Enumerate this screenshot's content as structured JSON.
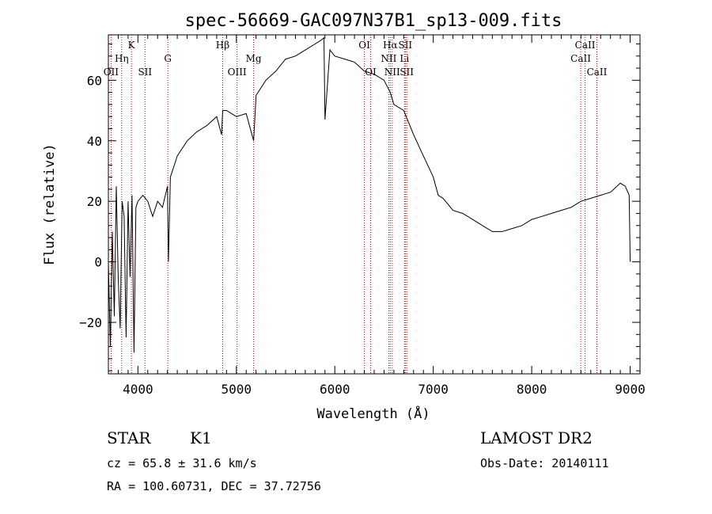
{
  "chart_data": {
    "type": "line",
    "title": "spec-56669-GAC097N37B1_sp13-009.fits",
    "xlabel": "Wavelength (Å)",
    "ylabel": "Flux (relative)",
    "xlim": [
      3700,
      9100
    ],
    "ylim": [
      -37,
      75
    ],
    "xticks": [
      4000,
      5000,
      6000,
      7000,
      8000,
      9000
    ],
    "yticks": [
      -20,
      0,
      20,
      40,
      60
    ],
    "grid": false,
    "series": [
      {
        "x": [
          3700,
          3720,
          3740,
          3760,
          3780,
          3800,
          3820,
          3840,
          3860,
          3880,
          3900,
          3920,
          3940,
          3960,
          3980,
          4000,
          4050,
          4100,
          4150,
          4200,
          4250,
          4300,
          4310,
          4330,
          4400,
          4500,
          4600,
          4700,
          4800,
          4850,
          4861,
          4900,
          5000,
          5100,
          5175,
          5200,
          5300,
          5400,
          5500,
          5600,
          5700,
          5800,
          5850,
          5890,
          5900,
          5950,
          6000,
          6100,
          6200,
          6300,
          6400,
          6500,
          6563,
          6600,
          6700,
          6800,
          6900,
          7000,
          7050,
          7100,
          7200,
          7300,
          7400,
          7500,
          7600,
          7700,
          7800,
          7900,
          8000,
          8100,
          8200,
          8300,
          8400,
          8500,
          8600,
          8700,
          8800,
          8900,
          8950,
          8990,
          9000
        ],
        "y": [
          0,
          -28,
          10,
          -18,
          25,
          -5,
          -22,
          20,
          15,
          -25,
          20,
          -5,
          22,
          -30,
          18,
          20,
          22,
          20,
          15,
          20,
          18,
          25,
          0,
          28,
          35,
          40,
          43,
          45,
          48,
          42,
          50,
          50,
          48,
          49,
          40,
          55,
          60,
          63,
          67,
          68,
          70,
          72,
          73,
          74,
          47,
          70,
          68,
          67,
          66,
          63,
          62,
          60,
          56,
          52,
          50,
          42,
          35,
          28,
          22,
          21,
          17,
          16,
          14,
          12,
          10,
          10,
          11,
          12,
          14,
          15,
          16,
          17,
          18,
          20,
          21,
          22,
          23,
          26,
          25,
          22,
          0
        ]
      }
    ],
    "line_markers": [
      {
        "label": "OII",
        "x": 3727,
        "row": 3
      },
      {
        "label": "Hη",
        "x": 3835,
        "row": 2
      },
      {
        "label": "K",
        "x": 3934,
        "row": 1
      },
      {
        "label": "SII",
        "x": 4072,
        "row": 3
      },
      {
        "label": "G",
        "x": 4304,
        "row": 2
      },
      {
        "label": "Hβ",
        "x": 4861,
        "row": 1
      },
      {
        "label": "OIII",
        "x": 5007,
        "row": 3
      },
      {
        "label": "Mg",
        "x": 5175,
        "row": 2
      },
      {
        "label": "OI",
        "x": 6300,
        "row": 1
      },
      {
        "label": "OI",
        "x": 6364,
        "row": 3
      },
      {
        "label": "NII",
        "x": 6548,
        "row": 2
      },
      {
        "label": "Hα",
        "x": 6563,
        "row": 1
      },
      {
        "label": "NII",
        "x": 6583,
        "row": 3
      },
      {
        "label": "Li",
        "x": 6708,
        "row": 2
      },
      {
        "label": "SII",
        "x": 6716,
        "row": 1
      },
      {
        "label": "SII",
        "x": 6731,
        "row": 3
      },
      {
        "label": "CaII",
        "x": 8498,
        "row": 2
      },
      {
        "label": "CaII",
        "x": 8542,
        "row": 1
      },
      {
        "label": "CaII",
        "x": 8662,
        "row": 3
      }
    ]
  },
  "info": {
    "object_class": "STAR",
    "subclass": "K1",
    "survey": "LAMOST DR2",
    "redshift": "cz = 65.8 ± 31.6 km/s",
    "obs_date": "Obs-Date: 20140111",
    "coords": "RA = 100.60731, DEC =  37.72756"
  }
}
